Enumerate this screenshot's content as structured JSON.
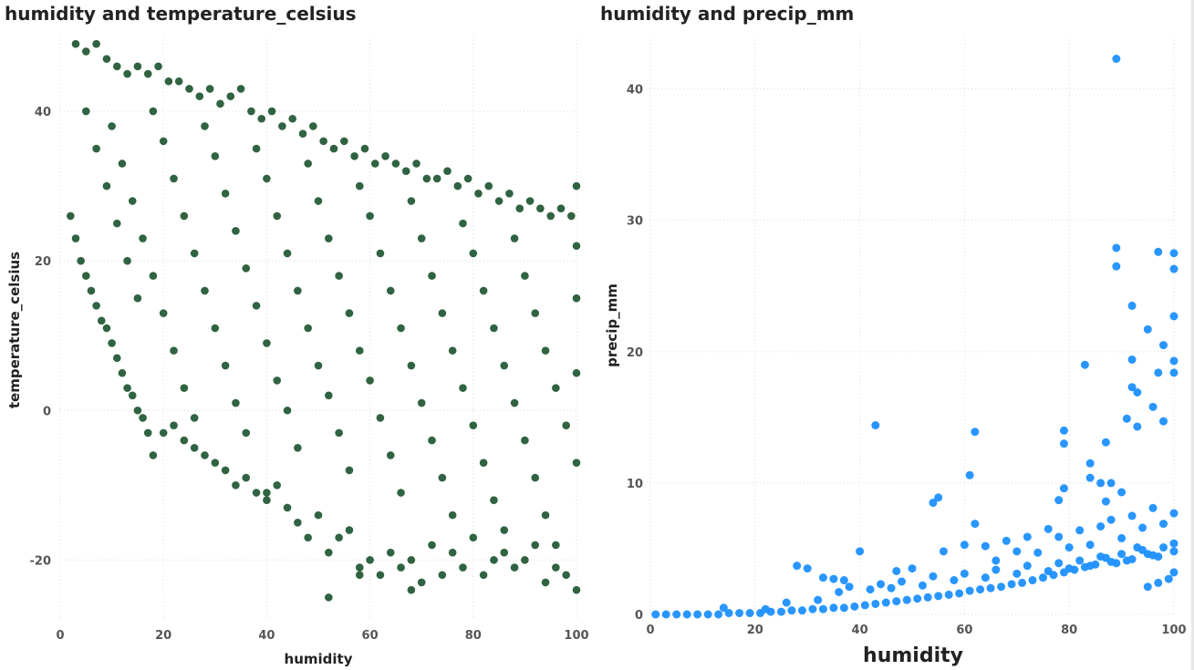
{
  "chart_data": [
    {
      "type": "scatter",
      "title": "humidity and temperature_celsius",
      "xlabel": "humidity",
      "ylabel": "temperature_celsius",
      "xlim": [
        0,
        100
      ],
      "ylim": [
        -28,
        50
      ],
      "x_ticks": [
        0,
        20,
        40,
        60,
        80,
        100
      ],
      "y_ticks": [
        -20,
        0,
        20,
        40
      ],
      "grid": true,
      "color": "#1e5631",
      "points": [
        [
          3,
          49
        ],
        [
          5,
          48
        ],
        [
          7,
          49
        ],
        [
          9,
          47
        ],
        [
          11,
          46
        ],
        [
          13,
          45
        ],
        [
          15,
          46
        ],
        [
          17,
          45
        ],
        [
          19,
          46
        ],
        [
          21,
          44
        ],
        [
          23,
          44
        ],
        [
          25,
          43
        ],
        [
          27,
          42
        ],
        [
          29,
          43
        ],
        [
          31,
          41
        ],
        [
          33,
          42
        ],
        [
          35,
          43
        ],
        [
          37,
          40
        ],
        [
          39,
          39
        ],
        [
          41,
          40
        ],
        [
          43,
          38
        ],
        [
          45,
          39
        ],
        [
          47,
          37
        ],
        [
          49,
          38
        ],
        [
          51,
          36
        ],
        [
          53,
          35
        ],
        [
          55,
          36
        ],
        [
          57,
          34
        ],
        [
          59,
          35
        ],
        [
          61,
          33
        ],
        [
          63,
          34
        ],
        [
          65,
          33
        ],
        [
          67,
          32
        ],
        [
          69,
          33
        ],
        [
          71,
          31
        ],
        [
          73,
          31
        ],
        [
          75,
          32
        ],
        [
          77,
          30
        ],
        [
          79,
          31
        ],
        [
          81,
          29
        ],
        [
          83,
          30
        ],
        [
          85,
          28
        ],
        [
          87,
          29
        ],
        [
          89,
          27
        ],
        [
          91,
          28
        ],
        [
          93,
          27
        ],
        [
          95,
          26
        ],
        [
          97,
          27
        ],
        [
          99,
          26
        ],
        [
          100,
          30
        ],
        [
          2,
          26
        ],
        [
          3,
          23
        ],
        [
          4,
          20
        ],
        [
          5,
          18
        ],
        [
          6,
          16
        ],
        [
          7,
          14
        ],
        [
          8,
          12
        ],
        [
          9,
          11
        ],
        [
          10,
          9
        ],
        [
          11,
          7
        ],
        [
          12,
          5
        ],
        [
          13,
          3
        ],
        [
          14,
          2
        ],
        [
          15,
          0
        ],
        [
          16,
          -1
        ],
        [
          17,
          -3
        ],
        [
          18,
          -6
        ],
        [
          20,
          -3
        ],
        [
          22,
          -2
        ],
        [
          24,
          -4
        ],
        [
          26,
          -5
        ],
        [
          28,
          -6
        ],
        [
          30,
          -7
        ],
        [
          32,
          -8
        ],
        [
          34,
          -10
        ],
        [
          36,
          -9
        ],
        [
          38,
          -11
        ],
        [
          40,
          -12
        ],
        [
          42,
          -10
        ],
        [
          44,
          -13
        ],
        [
          46,
          -15
        ],
        [
          48,
          -17
        ],
        [
          50,
          -14
        ],
        [
          52,
          -19
        ],
        [
          54,
          -17
        ],
        [
          56,
          -16
        ],
        [
          58,
          -21
        ],
        [
          60,
          -20
        ],
        [
          62,
          -22
        ],
        [
          64,
          -19
        ],
        [
          66,
          -21
        ],
        [
          68,
          -20
        ],
        [
          70,
          -23
        ],
        [
          72,
          -18
        ],
        [
          74,
          -22
        ],
        [
          76,
          -19
        ],
        [
          78,
          -21
        ],
        [
          80,
          -17
        ],
        [
          82,
          -22
        ],
        [
          84,
          -20
        ],
        [
          86,
          -19
        ],
        [
          88,
          -21
        ],
        [
          90,
          -20
        ],
        [
          92,
          -18
        ],
        [
          94,
          -23
        ],
        [
          96,
          -21
        ],
        [
          98,
          -22
        ],
        [
          100,
          -24
        ],
        [
          52,
          -25
        ],
        [
          40,
          -11
        ],
        [
          58,
          -22
        ],
        [
          68,
          -24
        ],
        [
          5,
          40
        ],
        [
          7,
          35
        ],
        [
          9,
          30
        ],
        [
          11,
          25
        ],
        [
          13,
          20
        ],
        [
          15,
          15
        ],
        [
          10,
          38
        ],
        [
          12,
          33
        ],
        [
          14,
          28
        ],
        [
          16,
          23
        ],
        [
          18,
          18
        ],
        [
          20,
          13
        ],
        [
          22,
          8
        ],
        [
          24,
          3
        ],
        [
          26,
          -1
        ],
        [
          18,
          40
        ],
        [
          20,
          36
        ],
        [
          22,
          31
        ],
        [
          24,
          26
        ],
        [
          26,
          21
        ],
        [
          28,
          16
        ],
        [
          30,
          11
        ],
        [
          32,
          6
        ],
        [
          34,
          1
        ],
        [
          36,
          -3
        ],
        [
          28,
          38
        ],
        [
          30,
          34
        ],
        [
          32,
          29
        ],
        [
          34,
          24
        ],
        [
          36,
          19
        ],
        [
          38,
          14
        ],
        [
          40,
          9
        ],
        [
          42,
          4
        ],
        [
          44,
          0
        ],
        [
          46,
          -5
        ],
        [
          38,
          35
        ],
        [
          40,
          31
        ],
        [
          42,
          26
        ],
        [
          44,
          21
        ],
        [
          46,
          16
        ],
        [
          48,
          11
        ],
        [
          50,
          6
        ],
        [
          52,
          2
        ],
        [
          54,
          -3
        ],
        [
          56,
          -8
        ],
        [
          48,
          33
        ],
        [
          50,
          28
        ],
        [
          52,
          23
        ],
        [
          54,
          18
        ],
        [
          56,
          13
        ],
        [
          58,
          8
        ],
        [
          60,
          4
        ],
        [
          62,
          -1
        ],
        [
          64,
          -6
        ],
        [
          66,
          -11
        ],
        [
          58,
          30
        ],
        [
          60,
          26
        ],
        [
          62,
          21
        ],
        [
          64,
          16
        ],
        [
          66,
          11
        ],
        [
          68,
          6
        ],
        [
          70,
          1
        ],
        [
          72,
          -4
        ],
        [
          74,
          -9
        ],
        [
          76,
          -14
        ],
        [
          68,
          28
        ],
        [
          70,
          23
        ],
        [
          72,
          18
        ],
        [
          74,
          13
        ],
        [
          76,
          8
        ],
        [
          78,
          3
        ],
        [
          80,
          -2
        ],
        [
          82,
          -7
        ],
        [
          84,
          -12
        ],
        [
          86,
          -16
        ],
        [
          78,
          25
        ],
        [
          80,
          21
        ],
        [
          82,
          16
        ],
        [
          84,
          11
        ],
        [
          86,
          6
        ],
        [
          88,
          1
        ],
        [
          90,
          -4
        ],
        [
          92,
          -9
        ],
        [
          94,
          -14
        ],
        [
          96,
          -18
        ],
        [
          88,
          23
        ],
        [
          90,
          18
        ],
        [
          92,
          13
        ],
        [
          94,
          8
        ],
        [
          96,
          3
        ],
        [
          98,
          -2
        ],
        [
          100,
          -7
        ],
        [
          100,
          5
        ],
        [
          100,
          15
        ],
        [
          100,
          22
        ]
      ]
    },
    {
      "type": "scatter",
      "title": "humidity and precip_mm",
      "xlabel": "humidity",
      "ylabel": "precip_mm",
      "xlim": [
        0,
        100
      ],
      "ylim": [
        0,
        44
      ],
      "x_ticks": [
        0,
        20,
        40,
        60,
        80,
        100
      ],
      "y_ticks": [
        0,
        10,
        20,
        30,
        40
      ],
      "grid": true,
      "color": "#1e90ff",
      "points": [
        [
          89,
          42.3
        ],
        [
          89,
          27.9
        ],
        [
          89,
          26.5
        ],
        [
          97,
          27.6
        ],
        [
          100,
          27.5
        ],
        [
          100,
          26.3
        ],
        [
          92,
          23.5
        ],
        [
          95,
          21.7
        ],
        [
          100,
          22.7
        ],
        [
          98,
          20.5
        ],
        [
          100,
          19.3
        ],
        [
          83,
          19.0
        ],
        [
          92,
          19.4
        ],
        [
          97,
          18.4
        ],
        [
          100,
          18.4
        ],
        [
          92,
          17.3
        ],
        [
          93,
          16.9
        ],
        [
          96,
          15.8
        ],
        [
          43,
          14.4
        ],
        [
          62,
          13.9
        ],
        [
          79,
          14.0
        ],
        [
          79,
          13.0
        ],
        [
          87,
          13.1
        ],
        [
          91,
          14.9
        ],
        [
          93,
          14.3
        ],
        [
          98,
          14.7
        ],
        [
          61,
          10.6
        ],
        [
          84,
          11.5
        ],
        [
          84,
          10.4
        ],
        [
          86,
          10.0
        ],
        [
          88,
          10.0
        ],
        [
          55,
          8.9
        ],
        [
          54,
          8.5
        ],
        [
          78,
          8.7
        ],
        [
          79,
          9.6
        ],
        [
          87,
          8.6
        ],
        [
          90,
          9.3
        ],
        [
          40,
          4.8
        ],
        [
          28,
          3.7
        ],
        [
          30,
          3.5
        ],
        [
          33,
          2.8
        ],
        [
          35,
          2.7
        ],
        [
          37,
          2.6
        ],
        [
          47,
          3.3
        ],
        [
          50,
          3.5
        ],
        [
          56,
          4.8
        ],
        [
          60,
          5.3
        ],
        [
          62,
          6.9
        ],
        [
          64,
          5.2
        ],
        [
          66,
          4.1
        ],
        [
          68,
          5.6
        ],
        [
          70,
          4.8
        ],
        [
          72,
          5.9
        ],
        [
          74,
          4.7
        ],
        [
          76,
          6.5
        ],
        [
          78,
          5.9
        ],
        [
          80,
          5.1
        ],
        [
          82,
          6.4
        ],
        [
          84,
          5.3
        ],
        [
          86,
          6.7
        ],
        [
          88,
          7.2
        ],
        [
          90,
          5.8
        ],
        [
          92,
          7.5
        ],
        [
          94,
          6.6
        ],
        [
          96,
          8.1
        ],
        [
          98,
          6.9
        ],
        [
          100,
          7.7
        ],
        [
          100,
          5.4
        ],
        [
          97,
          4.4
        ],
        [
          95,
          4.6
        ],
        [
          93,
          5.1
        ],
        [
          91,
          4.1
        ],
        [
          89,
          3.9
        ],
        [
          87,
          4.3
        ],
        [
          85,
          3.8
        ],
        [
          83,
          3.6
        ],
        [
          81,
          3.4
        ],
        [
          79,
          3.2
        ],
        [
          77,
          3.0
        ],
        [
          75,
          2.8
        ],
        [
          73,
          2.6
        ],
        [
          71,
          2.4
        ],
        [
          69,
          2.3
        ],
        [
          67,
          2.1
        ],
        [
          65,
          2.0
        ],
        [
          63,
          1.9
        ],
        [
          61,
          1.8
        ],
        [
          59,
          1.6
        ],
        [
          57,
          1.5
        ],
        [
          55,
          1.4
        ],
        [
          53,
          1.3
        ],
        [
          51,
          1.2
        ],
        [
          49,
          1.1
        ],
        [
          47,
          1.0
        ],
        [
          45,
          0.9
        ],
        [
          43,
          0.8
        ],
        [
          41,
          0.7
        ],
        [
          39,
          0.6
        ],
        [
          37,
          0.5
        ],
        [
          35,
          0.5
        ],
        [
          33,
          0.4
        ],
        [
          31,
          0.4
        ],
        [
          29,
          0.3
        ],
        [
          27,
          0.3
        ],
        [
          25,
          0.2
        ],
        [
          23,
          0.2
        ],
        [
          21,
          0.1
        ],
        [
          19,
          0.1
        ],
        [
          17,
          0.1
        ],
        [
          15,
          0.1
        ],
        [
          13,
          0.0
        ],
        [
          11,
          0.0
        ],
        [
          9,
          0.0
        ],
        [
          7,
          0.0
        ],
        [
          5,
          0.0
        ],
        [
          3,
          0.0
        ],
        [
          1,
          0.0
        ],
        [
          14,
          0.5
        ],
        [
          22,
          0.4
        ],
        [
          26,
          0.9
        ],
        [
          32,
          1.1
        ],
        [
          36,
          1.7
        ],
        [
          38,
          2.1
        ],
        [
          42,
          1.9
        ],
        [
          44,
          2.3
        ],
        [
          46,
          2.0
        ],
        [
          48,
          2.5
        ],
        [
          52,
          2.2
        ],
        [
          54,
          2.9
        ],
        [
          58,
          2.6
        ],
        [
          60,
          3.1
        ],
        [
          64,
          2.8
        ],
        [
          66,
          3.4
        ],
        [
          70,
          3.1
        ],
        [
          72,
          3.7
        ],
        [
          76,
          3.3
        ],
        [
          78,
          3.9
        ],
        [
          80,
          3.5
        ],
        [
          82,
          4.1
        ],
        [
          84,
          3.7
        ],
        [
          86,
          4.4
        ],
        [
          88,
          4.0
        ],
        [
          90,
          4.6
        ],
        [
          92,
          4.2
        ],
        [
          94,
          4.9
        ],
        [
          96,
          4.5
        ],
        [
          98,
          5.1
        ],
        [
          100,
          4.8
        ],
        [
          100,
          3.2
        ],
        [
          99,
          2.7
        ],
        [
          97,
          2.4
        ],
        [
          95,
          2.1
        ]
      ]
    }
  ]
}
